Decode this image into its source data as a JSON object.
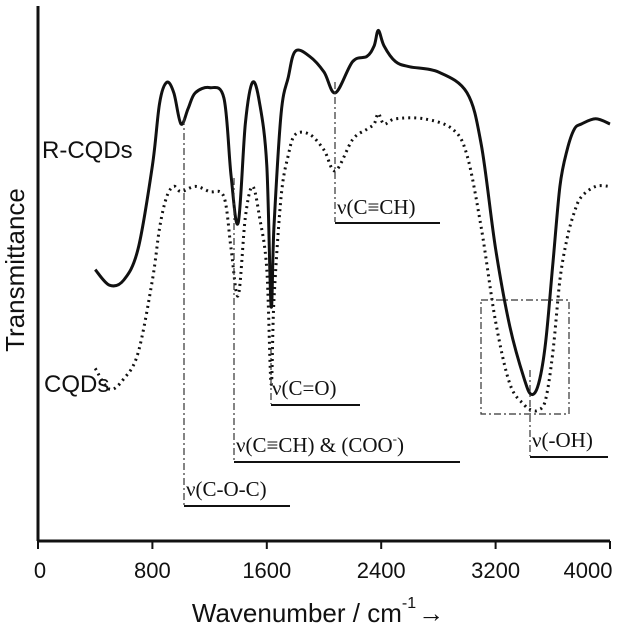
{
  "chart_data": {
    "type": "line",
    "xlabel": "Wavenumber / cm",
    "xlabel_superscript": "-1",
    "xlabel_arrow": "→",
    "ylabel": "Transmittance",
    "xlim": [
      0,
      4000
    ],
    "xticks": [
      "0",
      "800",
      "1600",
      "2400",
      "3200",
      "4000"
    ],
    "grid": false,
    "series": [
      {
        "name": "R-CQDs",
        "style": "solid",
        "x": [
          400,
          500,
          600,
          700,
          800,
          850,
          900,
          950,
          1000,
          1050,
          1100,
          1200,
          1300,
          1350,
          1400,
          1450,
          1500,
          1550,
          1600,
          1630,
          1650,
          1700,
          1750,
          1800,
          1900,
          2000,
          2080,
          2200,
          2300,
          2350,
          2380,
          2420,
          2500,
          2600,
          2800,
          3000,
          3100,
          3200,
          3300,
          3400,
          3450,
          3500,
          3550,
          3600,
          3650,
          3700,
          3750,
          3800,
          3900,
          4000
        ],
        "y": [
          0.52,
          0.49,
          0.5,
          0.56,
          0.72,
          0.84,
          0.88,
          0.86,
          0.8,
          0.83,
          0.86,
          0.87,
          0.85,
          0.7,
          0.61,
          0.8,
          0.88,
          0.84,
          0.72,
          0.45,
          0.6,
          0.82,
          0.89,
          0.94,
          0.93,
          0.9,
          0.86,
          0.92,
          0.93,
          0.95,
          0.98,
          0.95,
          0.92,
          0.91,
          0.9,
          0.86,
          0.76,
          0.56,
          0.41,
          0.31,
          0.28,
          0.3,
          0.38,
          0.53,
          0.68,
          0.75,
          0.79,
          0.8,
          0.81,
          0.8
        ]
      },
      {
        "name": "CQDs",
        "style": "dotted",
        "x": [
          400,
          500,
          600,
          700,
          800,
          850,
          900,
          950,
          1000,
          1100,
          1200,
          1300,
          1350,
          1400,
          1450,
          1500,
          1550,
          1600,
          1630,
          1650,
          1700,
          1750,
          1800,
          1900,
          2000,
          2080,
          2200,
          2300,
          2350,
          2380,
          2420,
          2500,
          2700,
          2900,
          3000,
          3100,
          3200,
          3300,
          3400,
          3450,
          3500,
          3550,
          3600,
          3650,
          3700,
          3750,
          3800,
          3900,
          4000
        ],
        "y": [
          0.33,
          0.29,
          0.31,
          0.36,
          0.5,
          0.6,
          0.66,
          0.68,
          0.67,
          0.68,
          0.67,
          0.66,
          0.56,
          0.47,
          0.62,
          0.68,
          0.62,
          0.52,
          0.3,
          0.46,
          0.66,
          0.74,
          0.78,
          0.78,
          0.75,
          0.71,
          0.77,
          0.79,
          0.8,
          0.82,
          0.8,
          0.81,
          0.81,
          0.79,
          0.74,
          0.6,
          0.42,
          0.3,
          0.26,
          0.25,
          0.25,
          0.27,
          0.36,
          0.5,
          0.58,
          0.63,
          0.66,
          0.68,
          0.68
        ]
      }
    ],
    "annotations": [
      {
        "text": "ν(C-O-C)",
        "x": 1020
      },
      {
        "text": "ν(C≡CH) & (COO",
        "superscript": "-",
        "suffix": ")",
        "x": 1380
      },
      {
        "text": "ν(C=O)",
        "x": 1630
      },
      {
        "text": "ν(C≡CH)",
        "x": 2080
      },
      {
        "text": "ν(-OH)",
        "x": 3450
      }
    ]
  }
}
